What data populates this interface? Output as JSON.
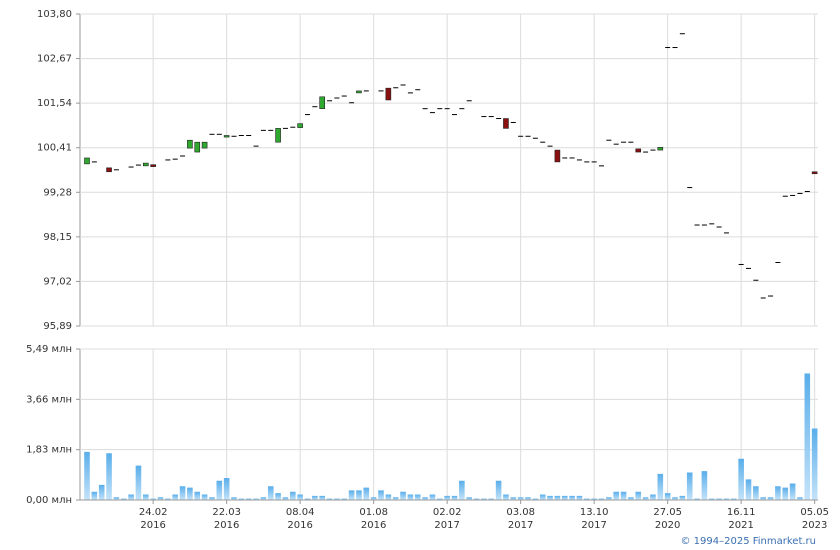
{
  "chart_data": [
    {
      "type": "candlestick",
      "open": [
        100.0,
        100.05,
        null,
        99.9,
        99.85,
        null,
        99.92,
        99.97,
        99.95,
        99.98,
        null,
        100.1,
        100.12,
        100.2,
        100.4,
        100.3,
        100.4,
        100.75,
        100.75,
        100.68,
        100.7,
        100.72,
        100.72,
        100.45,
        100.85,
        100.85,
        100.55,
        100.9,
        100.93,
        100.92,
        101.25,
        101.45,
        101.4,
        101.6,
        101.67,
        101.72,
        101.55,
        101.8,
        101.85,
        null,
        101.85,
        101.92,
        101.93,
        102.0,
        101.8,
        101.88,
        101.4,
        101.3,
        101.4,
        101.4,
        101.25,
        101.4,
        101.6,
        null,
        101.2,
        101.2,
        101.15,
        101.15,
        101.05,
        100.7,
        100.7,
        100.65,
        100.55,
        100.45,
        100.35,
        100.15,
        100.15,
        100.1,
        100.05,
        100.05,
        99.95,
        100.6,
        100.5,
        100.55,
        100.55,
        100.38,
        100.3,
        100.35,
        100.35,
        102.95,
        102.95,
        103.3,
        99.4,
        98.45,
        98.45,
        98.48,
        98.4,
        98.25,
        null,
        97.45,
        97.35,
        97.05,
        96.6,
        96.65,
        97.5,
        99.18,
        99.2,
        99.25,
        99.3,
        99.8
      ],
      "close": [
        100.15,
        100.05,
        null,
        99.8,
        99.85,
        null,
        99.92,
        99.97,
        100.02,
        99.93,
        null,
        100.1,
        100.12,
        100.2,
        100.6,
        100.55,
        100.55,
        100.75,
        100.75,
        100.72,
        100.7,
        100.72,
        100.72,
        100.45,
        100.85,
        100.85,
        100.9,
        100.9,
        100.93,
        101.02,
        101.25,
        101.45,
        101.7,
        101.6,
        101.67,
        101.72,
        101.55,
        101.85,
        101.85,
        null,
        101.85,
        101.62,
        101.93,
        102.0,
        101.8,
        101.88,
        101.4,
        101.3,
        101.4,
        101.4,
        101.25,
        101.4,
        101.6,
        null,
        101.2,
        101.2,
        101.15,
        100.9,
        101.05,
        100.7,
        100.7,
        100.65,
        100.55,
        100.45,
        100.05,
        100.15,
        100.15,
        100.1,
        100.05,
        100.05,
        99.95,
        100.6,
        100.5,
        100.55,
        100.55,
        100.3,
        100.3,
        100.35,
        100.42,
        102.95,
        102.95,
        103.3,
        99.4,
        98.45,
        98.45,
        98.48,
        98.4,
        98.25,
        null,
        97.45,
        97.35,
        97.05,
        96.6,
        96.65,
        97.5,
        99.18,
        99.2,
        99.25,
        99.3,
        99.75
      ],
      "up_color": "#2fa82f",
      "down_color": "#8b1010",
      "flat_color": "#000000",
      "ylim": [
        95.89,
        103.8
      ],
      "yticks": [
        {
          "value": 95.89,
          "label": "95,89"
        },
        {
          "value": 97.02,
          "label": "97,02"
        },
        {
          "value": 98.15,
          "label": "98,15"
        },
        {
          "value": 99.28,
          "label": "99,28"
        },
        {
          "value": 100.41,
          "label": "100,41"
        },
        {
          "value": 101.54,
          "label": "101,54"
        },
        {
          "value": 102.67,
          "label": "102,67"
        },
        {
          "value": 103.8,
          "label": "103,80"
        }
      ],
      "grid": true
    },
    {
      "type": "bar",
      "categories": [
        null,
        null,
        null,
        null,
        null,
        null,
        null,
        null,
        null,
        "24.02\n2016",
        null,
        null,
        null,
        null,
        null,
        null,
        null,
        null,
        null,
        "22.03\n2016",
        null,
        null,
        null,
        null,
        null,
        null,
        null,
        null,
        null,
        "08.04\n2016",
        null,
        null,
        null,
        null,
        null,
        null,
        null,
        null,
        null,
        "01.08\n2016",
        null,
        null,
        null,
        null,
        null,
        null,
        null,
        null,
        null,
        "02.02\n2017",
        null,
        null,
        null,
        null,
        null,
        null,
        null,
        null,
        null,
        "03.08\n2017",
        null,
        null,
        null,
        null,
        null,
        null,
        null,
        null,
        null,
        "13.10\n2017",
        null,
        null,
        null,
        null,
        null,
        null,
        null,
        null,
        null,
        "27.05\n2020",
        null,
        null,
        null,
        null,
        null,
        null,
        null,
        null,
        null,
        "16.11\n2021",
        null,
        null,
        null,
        null,
        null,
        null,
        null,
        null,
        null,
        "05.05\n2023"
      ],
      "values": [
        1.75,
        0.3,
        0.55,
        1.7,
        0.1,
        0.05,
        0.2,
        1.25,
        0.2,
        0.05,
        0.1,
        0.05,
        0.2,
        0.5,
        0.45,
        0.3,
        0.2,
        0.1,
        0.7,
        0.8,
        0.1,
        0.05,
        0.05,
        0.05,
        0.1,
        0.5,
        0.25,
        0.1,
        0.3,
        0.2,
        0.05,
        0.15,
        0.15,
        0.05,
        0.05,
        0.05,
        0.35,
        0.35,
        0.45,
        0.1,
        0.35,
        0.2,
        0.1,
        0.3,
        0.2,
        0.2,
        0.1,
        0.2,
        0.05,
        0.15,
        0.15,
        0.7,
        0.1,
        0.05,
        0.05,
        0.05,
        0.7,
        0.2,
        0.1,
        0.1,
        0.1,
        0.05,
        0.2,
        0.15,
        0.15,
        0.15,
        0.15,
        0.15,
        0.05,
        0.05,
        0.05,
        0.1,
        0.3,
        0.3,
        0.1,
        0.3,
        0.1,
        0.2,
        0.95,
        0.25,
        0.1,
        0.15,
        1.0,
        0.05,
        1.05,
        0.05,
        0.05,
        0.05,
        0.05,
        1.5,
        0.75,
        0.5,
        0.1,
        0.1,
        0.5,
        0.45,
        0.6,
        0.1,
        4.6,
        2.6
      ],
      "color": "#7cc0f0",
      "ylim": [
        0,
        5.49
      ],
      "yticks": [
        {
          "value": 0,
          "label": "0,00 млн"
        },
        {
          "value": 1.83,
          "label": "1,83 млн"
        },
        {
          "value": 3.66,
          "label": "3,66 млн"
        },
        {
          "value": 5.49,
          "label": "5,49 млн"
        }
      ],
      "grid": true
    }
  ],
  "footer": "© 1994–2025 Finmarket.ru"
}
